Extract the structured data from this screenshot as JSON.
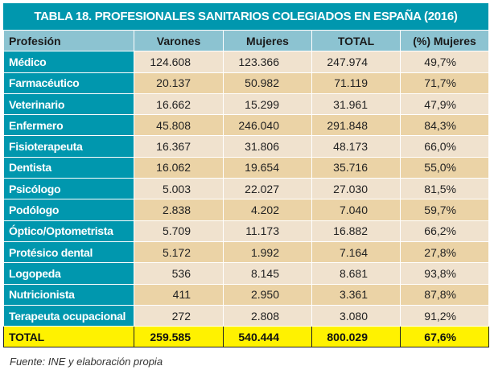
{
  "title": "TABLA 18. PROFESIONALES SANITARIOS COLEGIADOS EN ESPAÑA (2016)",
  "headers": [
    "Profesión",
    "Varones",
    "Mujeres",
    "TOTAL",
    "(%) Mujeres"
  ],
  "rows": [
    [
      "Médico",
      "124.608",
      "123.366",
      "247.974",
      "49,7%"
    ],
    [
      "Farmacéutico",
      "20.137",
      "50.982",
      "71.119",
      "71,7%"
    ],
    [
      "Veterinario",
      "16.662",
      "15.299",
      "31.961",
      "47,9%"
    ],
    [
      "Enfermero",
      "45.808",
      "246.040",
      "291.848",
      "84,3%"
    ],
    [
      "Fisioterapeuta",
      "16.367",
      "31.806",
      "48.173",
      "66,0%"
    ],
    [
      "Dentista",
      "16.062",
      "19.654",
      "35.716",
      "55,0%"
    ],
    [
      "Psicólogo",
      "5.003",
      "22.027",
      "27.030",
      "81,5%"
    ],
    [
      "Podólogo",
      "2.838",
      "4.202",
      "7.040",
      "59,7%"
    ],
    [
      "Óptico/Optometrista",
      "5.709",
      "11.173",
      "16.882",
      "66,2%"
    ],
    [
      "Protésico dental",
      "5.172",
      "1.992",
      "7.164",
      "27,8%"
    ],
    [
      "Logopeda",
      "536",
      "8.145",
      "8.681",
      "93,8%"
    ],
    [
      "Nutricionista",
      "411",
      "2.950",
      "3.361",
      "87,8%"
    ],
    [
      "Terapeuta ocupacional",
      "272",
      "2.808",
      "3.080",
      "91,2%"
    ]
  ],
  "total": [
    "TOTAL",
    "259.585",
    "540.444",
    "800.029",
    "67,6%"
  ],
  "source": "Fuente: INE y elaboración propia",
  "colors": {
    "teal": "#0097ae",
    "header": "#8cc3d1",
    "row_light": "#f0e2ce",
    "row_dark": "#ebd3a6",
    "total": "#fff200"
  }
}
